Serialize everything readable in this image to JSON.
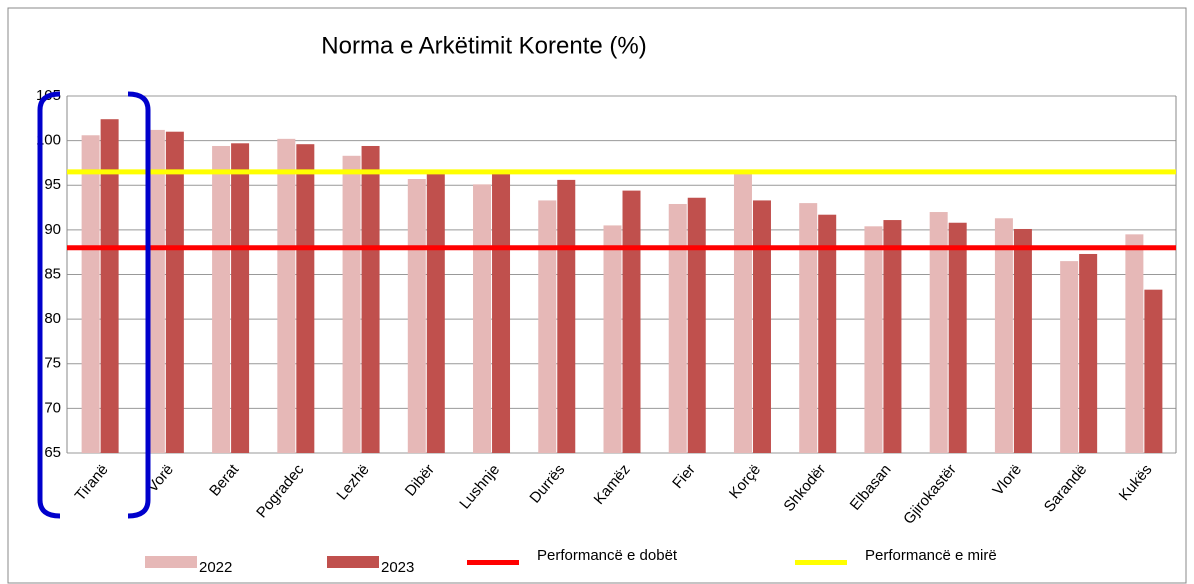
{
  "chart_data": {
    "type": "bar",
    "title": "Norma e Arkëtimit Korente (%)",
    "categories": [
      "Tiranë",
      "Vorë",
      "Berat",
      "Pogradec",
      "Lezhë",
      "Dibër",
      "Lushnje",
      "Durrës",
      "Kamëz",
      "Fier",
      "Korçë",
      "Shkodër",
      "Elbasan",
      "Gjirokastër",
      "Vlorë",
      "Sarandë",
      "Kukës"
    ],
    "series": [
      {
        "name": "2022",
        "color": "#e6b8b7",
        "values": [
          100.6,
          101.2,
          99.4,
          100.2,
          98.3,
          95.7,
          95.1,
          93.3,
          90.5,
          92.9,
          96.4,
          93.0,
          90.4,
          92.0,
          91.3,
          86.5,
          89.5
        ]
      },
      {
        "name": "2023",
        "color": "#c0504d",
        "values": [
          102.4,
          101.0,
          99.7,
          99.6,
          99.4,
          96.5,
          96.6,
          95.6,
          94.4,
          93.6,
          93.3,
          91.7,
          91.1,
          90.8,
          90.1,
          87.3,
          83.3
        ]
      }
    ],
    "reference_lines": [
      {
        "name": "Performancë e dobët",
        "value": 88,
        "color": "#ff0000"
      },
      {
        "name": "Performancë e mirë",
        "value": 96.5,
        "color": "#ffff00"
      }
    ],
    "ylim": [
      65,
      105
    ],
    "yticks": [
      65,
      70,
      75,
      80,
      85,
      90,
      95,
      100,
      105
    ],
    "grid": true
  }
}
